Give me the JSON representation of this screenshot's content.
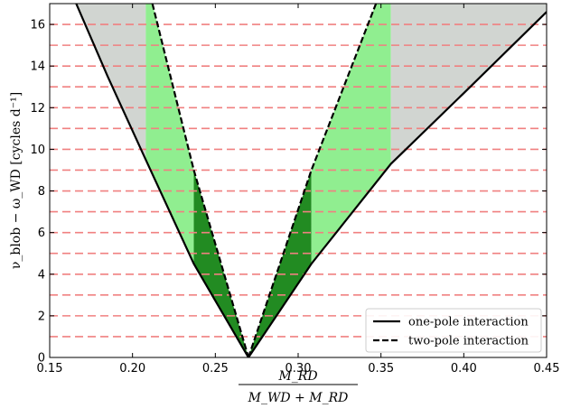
{
  "chart_data": {
    "type": "area",
    "xlabel": {
      "numerator": "M_RD",
      "denominator": "M_WD + M_RD"
    },
    "ylabel": "ν_blob − ω_WD [cycles d⁻¹]",
    "xlim": [
      0.15,
      0.45
    ],
    "ylim": [
      0,
      17
    ],
    "x_ticks": [
      0.15,
      0.2,
      0.25,
      0.3,
      0.35,
      0.4,
      0.45
    ],
    "x_tick_labels": [
      "0.15",
      "0.20",
      "0.25",
      "0.30",
      "0.35",
      "0.40",
      "0.45"
    ],
    "y_ticks": [
      0,
      2,
      4,
      6,
      8,
      10,
      12,
      14,
      16
    ],
    "y_tick_labels": [
      "0",
      "2",
      "4",
      "6",
      "8",
      "10",
      "12",
      "14",
      "16"
    ],
    "observed_frequencies": [
      1,
      2,
      3,
      4,
      5,
      6,
      7,
      8,
      9,
      10,
      11,
      12,
      13,
      14,
      15,
      16
    ],
    "observed_color": "#f08080",
    "q_min": 0.27,
    "series": [
      {
        "name": "one-pole interaction",
        "style": "solid",
        "left_branch": [
          [
            0.166,
            17
          ],
          [
            0.185,
            13.5
          ],
          [
            0.208,
            9.5
          ],
          [
            0.237,
            4.5
          ],
          [
            0.27,
            0
          ]
        ],
        "right_branch": [
          [
            0.27,
            0
          ],
          [
            0.308,
            4.5
          ],
          [
            0.356,
            9.3
          ],
          [
            0.4,
            12.7
          ],
          [
            0.45,
            16.6
          ]
        ]
      },
      {
        "name": "two-pole interaction",
        "style": "dashed",
        "left_branch": [
          [
            0.212,
            17
          ],
          [
            0.237,
            9.0
          ],
          [
            0.27,
            0
          ]
        ],
        "right_branch": [
          [
            0.27,
            0
          ],
          [
            0.308,
            9.0
          ],
          [
            0.347,
            17
          ]
        ]
      }
    ],
    "regions": [
      {
        "color": "#d1d5d1",
        "x_range": [
          0.15,
          0.208
        ]
      },
      {
        "color": "#90ee90",
        "x_range": [
          0.208,
          0.237
        ]
      },
      {
        "color": "#228b22",
        "x_range": [
          0.237,
          0.308
        ]
      },
      {
        "color": "#90ee90",
        "x_range": [
          0.308,
          0.356
        ]
      },
      {
        "color": "#d1d5d1",
        "x_range": [
          0.356,
          0.45
        ]
      }
    ],
    "legend": {
      "position": "bottom-right"
    }
  }
}
